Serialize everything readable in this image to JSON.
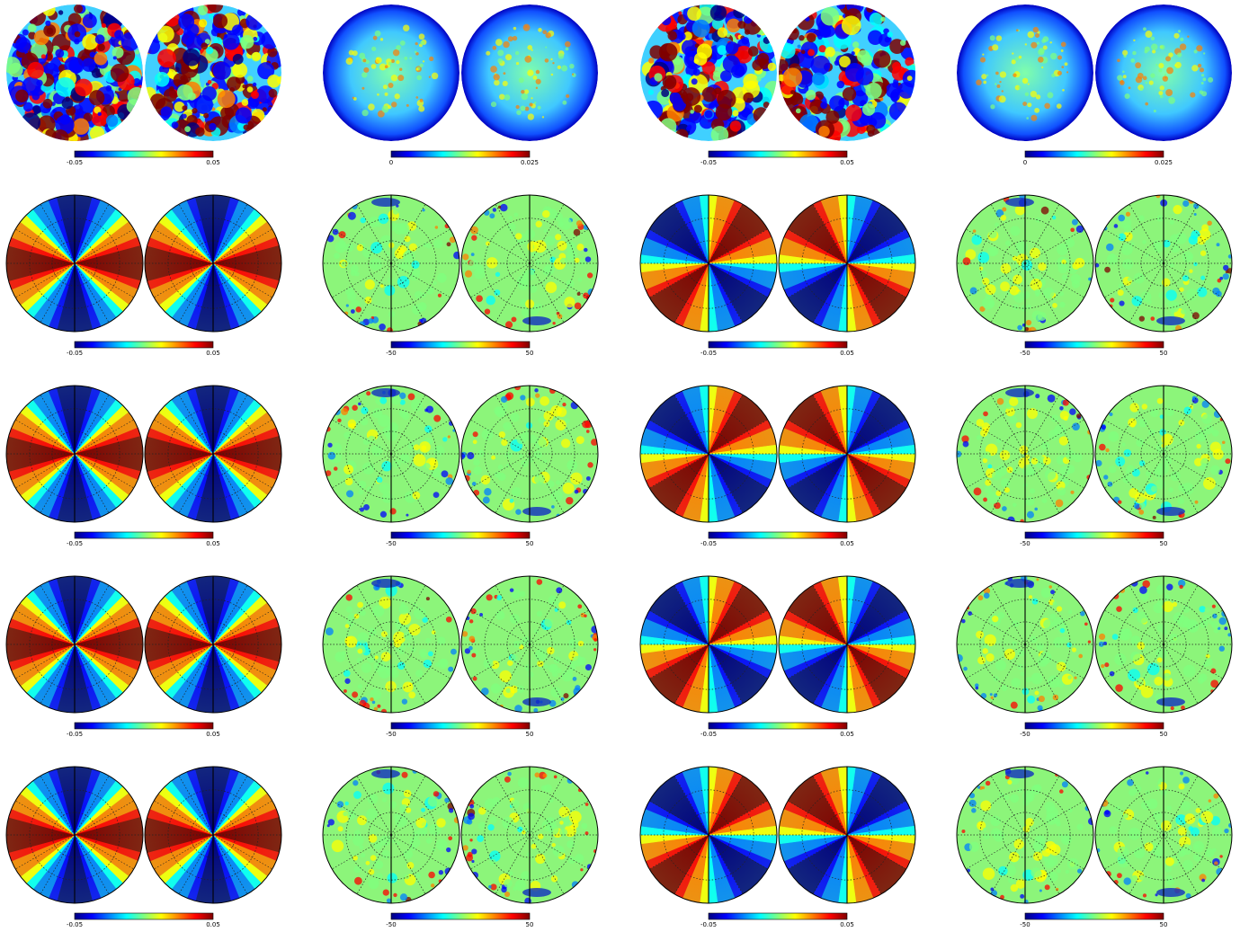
{
  "figure": {
    "rows": 5,
    "cols": 4,
    "colormap": [
      "#00007f",
      "#0000ff",
      "#007fff",
      "#00ffff",
      "#7fff7f",
      "#ffff00",
      "#ff7f00",
      "#ff0000",
      "#7f0000"
    ]
  },
  "panels": [
    {
      "kind": "noise",
      "cb_min": "-0.05",
      "cb_max": "0.05"
    },
    {
      "kind": "uncert",
      "cb_min": "0",
      "cb_max": "0.025"
    },
    {
      "kind": "noise",
      "cb_min": "-0.05",
      "cb_max": "0.05"
    },
    {
      "kind": "uncert",
      "cb_min": "0",
      "cb_max": "0.025"
    },
    {
      "kind": "dipole-a",
      "cb_min": "-0.05",
      "cb_max": "0.05"
    },
    {
      "kind": "residual",
      "cb_min": "-50",
      "cb_max": "50"
    },
    {
      "kind": "dipole-b",
      "cb_min": "-0.05",
      "cb_max": "0.05"
    },
    {
      "kind": "residual",
      "cb_min": "-50",
      "cb_max": "50"
    },
    {
      "kind": "dipole-a",
      "cb_min": "-0.05",
      "cb_max": "0.05"
    },
    {
      "kind": "residual",
      "cb_min": "-50",
      "cb_max": "50"
    },
    {
      "kind": "dipole-b",
      "cb_min": "-0.05",
      "cb_max": "0.05"
    },
    {
      "kind": "residual",
      "cb_min": "-50",
      "cb_max": "50"
    },
    {
      "kind": "dipole-a",
      "cb_min": "-0.05",
      "cb_max": "0.05"
    },
    {
      "kind": "residual",
      "cb_min": "-50",
      "cb_max": "50"
    },
    {
      "kind": "dipole-b",
      "cb_min": "-0.05",
      "cb_max": "0.05"
    },
    {
      "kind": "residual",
      "cb_min": "-50",
      "cb_max": "50"
    },
    {
      "kind": "dipole-a",
      "cb_min": "-0.05",
      "cb_max": "0.05"
    },
    {
      "kind": "residual",
      "cb_min": "-50",
      "cb_max": "50"
    },
    {
      "kind": "dipole-b",
      "cb_min": "-0.05",
      "cb_max": "0.05"
    },
    {
      "kind": "residual",
      "cb_min": "-50",
      "cb_max": "50"
    }
  ]
}
